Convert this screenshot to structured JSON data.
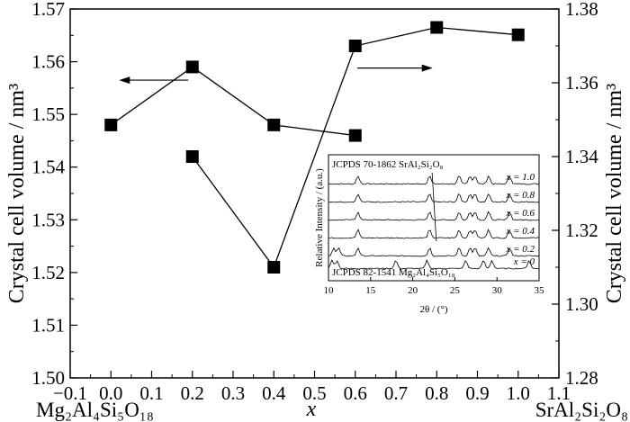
{
  "chart_data": [
    {
      "type": "line",
      "xlabel": "x",
      "ylabel_left": "Crystal cell volume / nm³",
      "ylabel_right": "Crystal cell volume / nm³",
      "xlim": [
        -0.1,
        1.1
      ],
      "ylim_left": [
        1.5,
        1.57
      ],
      "ylim_right": [
        1.28,
        1.38
      ],
      "x_ticks": [
        "−0.1",
        "0.0",
        "0.1",
        "0.2",
        "0.3",
        "0.4",
        "0.5",
        "0.6",
        "0.7",
        "0.8",
        "0.9",
        "1.0",
        "1.1"
      ],
      "y_left_ticks": [
        "1.50",
        "1.51",
        "1.52",
        "1.53",
        "1.54",
        "1.55",
        "1.56",
        "1.57"
      ],
      "y_right_ticks": [
        "1.28",
        "1.30",
        "1.32",
        "1.34",
        "1.36",
        "1.38"
      ],
      "bottom_left_label": "Mg₂Al₄Si₅O₁₈",
      "bottom_right_label": "SrAl₂Si₂O₈",
      "series": [
        {
          "axis": "left",
          "x": [
            0.0,
            0.2,
            0.4,
            0.6
          ],
          "y": [
            1.548,
            1.559,
            1.548,
            1.546
          ]
        },
        {
          "axis": "right",
          "x": [
            0.2,
            0.4,
            0.6,
            0.8,
            1.0
          ],
          "y": [
            1.34,
            1.31,
            1.37,
            1.375,
            1.373
          ]
        }
      ],
      "arrows": [
        {
          "points_to": "left",
          "label": ""
        },
        {
          "points_to": "right",
          "label": ""
        }
      ],
      "marker": "square",
      "grid": false
    },
    {
      "type": "line",
      "inset": true,
      "xlabel": "2θ / (°)",
      "ylabel": "Relative Intensity / (a.u.)",
      "xlim": [
        10,
        35
      ],
      "x_ticks": [
        "10",
        "15",
        "20",
        "25",
        "30",
        "35"
      ],
      "top_label": "JCPDS 70-1862 SrAl₂Si₂O₈",
      "bottom_label": "JCPDS 82-1541 Mg₂Al₄Si₅O₁₈",
      "trace_labels": [
        "x = 1.0",
        "x = 0.8",
        "x = 0.6",
        "x = 0.4",
        "x = 0.2",
        "x = 0"
      ]
    }
  ]
}
